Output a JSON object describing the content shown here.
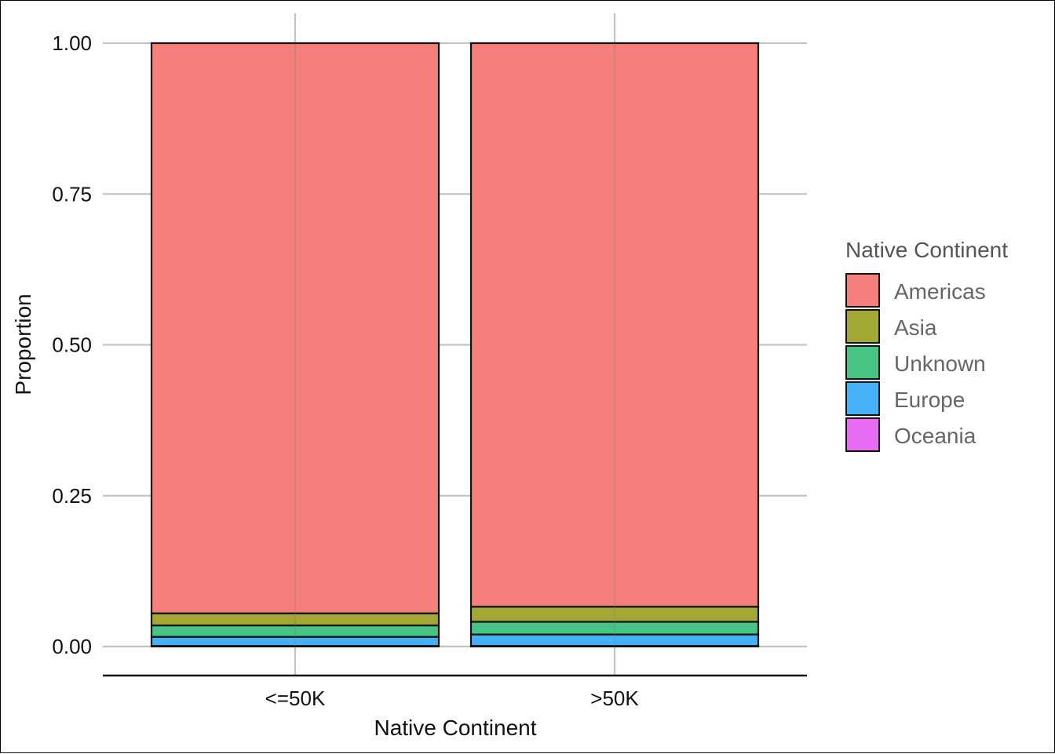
{
  "chart_data": {
    "type": "bar",
    "stacked": true,
    "normalized": true,
    "categories": [
      "<=50K",
      ">50K"
    ],
    "xlabel": "Native Continent",
    "ylabel": "Proportion",
    "ylim": [
      0,
      1
    ],
    "yticks": [
      "0.00",
      "0.25",
      "0.50",
      "0.75",
      "1.00"
    ],
    "grid": true,
    "legend": {
      "title": "Native Continent",
      "position": "right"
    },
    "series": [
      {
        "name": "Oceania",
        "color": "#E76BF3",
        "values": [
          0.001,
          0.001
        ]
      },
      {
        "name": "Europe",
        "color": "#45B1F9",
        "values": [
          0.015,
          0.019
        ]
      },
      {
        "name": "Unknown",
        "color": "#45C484",
        "values": [
          0.019,
          0.021
        ]
      },
      {
        "name": "Asia",
        "color": "#A3A835",
        "values": [
          0.02,
          0.025
        ]
      },
      {
        "name": "Americas",
        "color": "#F47F7B",
        "values": [
          0.945,
          0.934
        ]
      }
    ],
    "legend_order": [
      "Americas",
      "Asia",
      "Unknown",
      "Europe",
      "Oceania"
    ]
  }
}
